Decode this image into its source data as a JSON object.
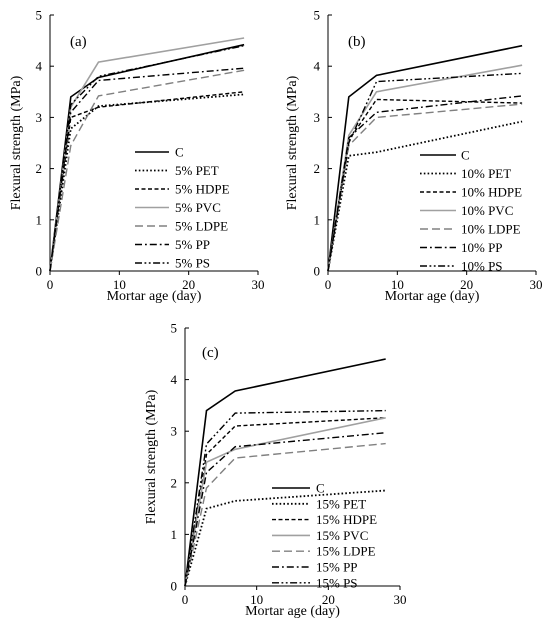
{
  "chart_data": [
    {
      "type": "line",
      "panel_label": "(a)",
      "xlabel": "Mortar age (day)",
      "ylabel": "Flexural strength (MPa)",
      "xlim": [
        0,
        30
      ],
      "ylim": [
        0,
        5
      ],
      "xticks": [
        "0",
        "10",
        "20",
        "30"
      ],
      "yticks": [
        "0",
        "1",
        "2",
        "3",
        "4",
        "5"
      ],
      "x": [
        0,
        3,
        7,
        28
      ],
      "grid": false,
      "legend_position": "bottom-right",
      "series": [
        {
          "name": "C",
          "style": "solid",
          "color": "#000000",
          "values": [
            0,
            3.4,
            3.78,
            4.42
          ]
        },
        {
          "name": "5% PET",
          "style": "dotted",
          "color": "#000000",
          "values": [
            0,
            2.78,
            3.22,
            3.45
          ]
        },
        {
          "name": "5% HDPE",
          "style": "dashed-short",
          "color": "#000000",
          "values": [
            0,
            3.0,
            3.2,
            3.5
          ]
        },
        {
          "name": "5% PVC",
          "style": "solid",
          "color": "#a0a0a0",
          "values": [
            0,
            3.2,
            4.08,
            4.55
          ]
        },
        {
          "name": "5% LDPE",
          "style": "dashed-long",
          "color": "#808080",
          "values": [
            0,
            2.45,
            3.42,
            3.92
          ]
        },
        {
          "name": "5% PP",
          "style": "dashdot",
          "color": "#000000",
          "values": [
            0,
            3.1,
            3.72,
            3.96
          ]
        },
        {
          "name": "5% PS",
          "style": "dashdotdot",
          "color": "#000000",
          "values": [
            0,
            3.25,
            3.8,
            4.4
          ]
        }
      ]
    },
    {
      "type": "line",
      "panel_label": "(b)",
      "xlabel": "Mortar age (day)",
      "ylabel": "Flexural strength (MPa)",
      "xlim": [
        0,
        30
      ],
      "ylim": [
        0,
        5
      ],
      "xticks": [
        "0",
        "10",
        "20",
        "30"
      ],
      "yticks": [
        "0",
        "1",
        "2",
        "3",
        "4",
        "5"
      ],
      "x": [
        0,
        3,
        7,
        28
      ],
      "grid": false,
      "legend_position": "bottom-right",
      "series": [
        {
          "name": "C",
          "style": "solid",
          "color": "#000000",
          "values": [
            0,
            3.4,
            3.82,
            4.4
          ]
        },
        {
          "name": "10% PET",
          "style": "dotted",
          "color": "#000000",
          "values": [
            0,
            2.25,
            2.32,
            2.92
          ]
        },
        {
          "name": "10% HDPE",
          "style": "dashed-short",
          "color": "#000000",
          "values": [
            0,
            2.55,
            3.35,
            3.28
          ]
        },
        {
          "name": "10% PVC",
          "style": "solid",
          "color": "#a0a0a0",
          "values": [
            0,
            2.65,
            3.5,
            4.02
          ]
        },
        {
          "name": "10% LDPE",
          "style": "dashed-long",
          "color": "#808080",
          "values": [
            0,
            2.45,
            3.0,
            3.26
          ]
        },
        {
          "name": "10% PP",
          "style": "dashdot",
          "color": "#000000",
          "values": [
            0,
            2.6,
            3.1,
            3.42
          ]
        },
        {
          "name": "10% PS",
          "style": "dashdotdot",
          "color": "#000000",
          "values": [
            0,
            2.5,
            3.7,
            3.86
          ]
        }
      ]
    },
    {
      "type": "line",
      "panel_label": "(c)",
      "xlabel": "Mortar age (day)",
      "ylabel": "Flexural strength (MPa)",
      "xlim": [
        0,
        30
      ],
      "ylim": [
        0,
        5
      ],
      "xticks": [
        "0",
        "10",
        "20",
        "30"
      ],
      "yticks": [
        "0",
        "1",
        "2",
        "3",
        "4",
        "5"
      ],
      "x": [
        0,
        3,
        7,
        28
      ],
      "grid": false,
      "legend_position": "bottom-right",
      "series": [
        {
          "name": "C",
          "style": "solid",
          "color": "#000000",
          "values": [
            0,
            3.4,
            3.78,
            4.4
          ]
        },
        {
          "name": "15% PET",
          "style": "dotted",
          "color": "#000000",
          "values": [
            0,
            1.5,
            1.65,
            1.85
          ]
        },
        {
          "name": "15% HDPE",
          "style": "dashed-short",
          "color": "#000000",
          "values": [
            0,
            2.55,
            3.1,
            3.26
          ]
        },
        {
          "name": "15% PVC",
          "style": "solid",
          "color": "#a0a0a0",
          "values": [
            0,
            2.4,
            2.65,
            3.26
          ]
        },
        {
          "name": "15% LDPE",
          "style": "dashed-long",
          "color": "#808080",
          "values": [
            0,
            1.9,
            2.48,
            2.76
          ]
        },
        {
          "name": "15% PP",
          "style": "dashdot",
          "color": "#000000",
          "values": [
            0,
            2.2,
            2.7,
            2.97
          ]
        },
        {
          "name": "15% PS",
          "style": "dashdotdot",
          "color": "#000000",
          "values": [
            0,
            2.75,
            3.35,
            3.4
          ]
        }
      ]
    }
  ]
}
